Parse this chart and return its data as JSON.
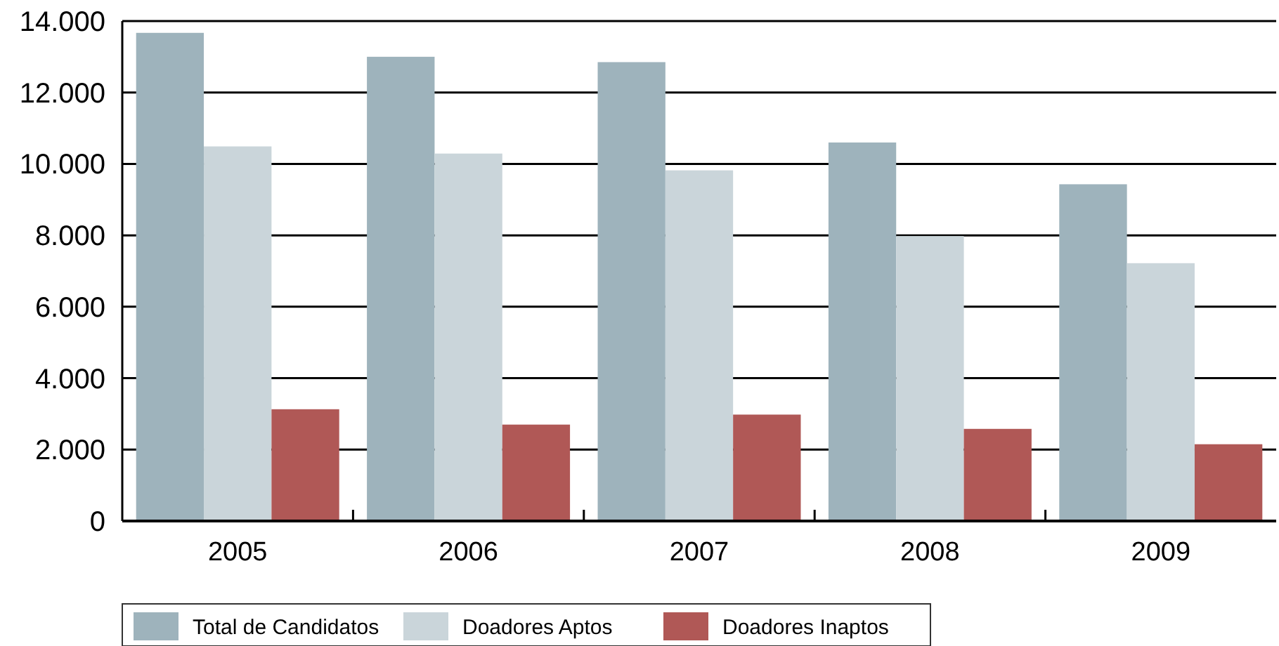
{
  "chart_data": {
    "type": "bar",
    "categories": [
      "2005",
      "2006",
      "2007",
      "2008",
      "2009"
    ],
    "series": [
      {
        "name": "Total de Candidatos",
        "color": "#9eb3bc",
        "values": [
          13670,
          13000,
          12850,
          10600,
          9430
        ]
      },
      {
        "name": "Doadores Aptos",
        "color": "#cad5da",
        "values": [
          10490,
          10290,
          9820,
          7980,
          7220
        ]
      },
      {
        "name": "Doadores Inaptos",
        "color": "#b05856",
        "values": [
          3130,
          2700,
          2980,
          2580,
          2150
        ]
      }
    ],
    "ylim": [
      0,
      14000
    ],
    "yticks": [
      {
        "value": 0,
        "label": "0"
      },
      {
        "value": 2000,
        "label": "2.000"
      },
      {
        "value": 4000,
        "label": "4.000"
      },
      {
        "value": 6000,
        "label": "6.000"
      },
      {
        "value": 8000,
        "label": "8.000"
      },
      {
        "value": 10000,
        "label": "10.000"
      },
      {
        "value": 12000,
        "label": "12.000"
      },
      {
        "value": 14000,
        "label": "14.000"
      }
    ],
    "grid": "y",
    "legend": "bottom left"
  }
}
